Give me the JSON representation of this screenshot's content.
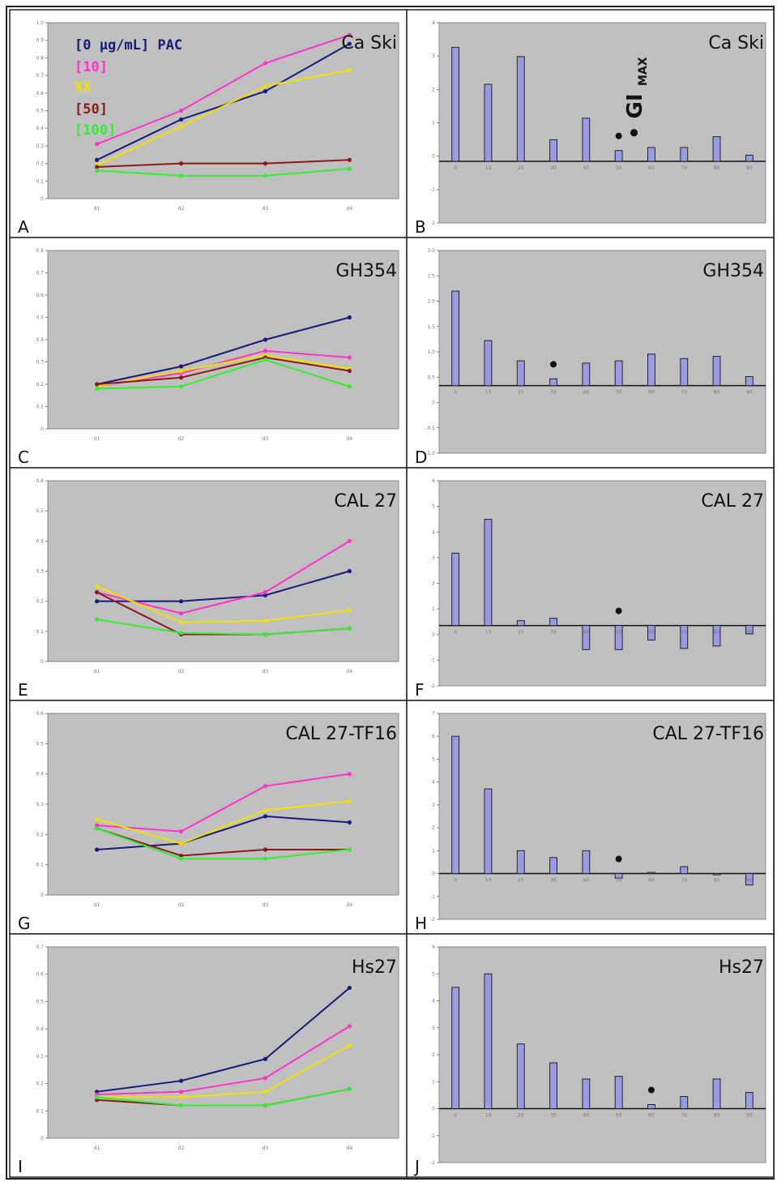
{
  "figure": {
    "background": "#c0c0c0"
  },
  "legend": {
    "entries": [
      {
        "label": "[0 μg/mL] PAC",
        "color": "#1a1a7a"
      },
      {
        "label": "[10]",
        "color": "#ff33cc"
      },
      {
        "label": "XX",
        "color": "#f0e000"
      },
      {
        "label": "[50]",
        "color": "#8b1a1a"
      },
      {
        "label": "[100]",
        "color": "#33ee33"
      }
    ]
  },
  "gimax_label": "• GI",
  "gimax_sub": "MAX",
  "chart_data": [
    {
      "type": "line",
      "panel": "A",
      "title": "Ca Ski",
      "categories": [
        "d1",
        "d2",
        "d3",
        "d4"
      ],
      "ylim": [
        0,
        1.0
      ],
      "yticks": [
        "0",
        "0.1",
        "0.2",
        "0.3",
        "0.4",
        "0.5",
        "0.6",
        "0.7",
        "0.8",
        "0.9",
        "1.0"
      ],
      "series": [
        {
          "name": "[0 μg/mL] PAC",
          "color": "#1a1a7a",
          "values": [
            0.22,
            0.45,
            0.61,
            0.88
          ]
        },
        {
          "name": "[10]",
          "color": "#ff33cc",
          "values": [
            0.31,
            0.5,
            0.77,
            0.93
          ]
        },
        {
          "name": "XX",
          "color": "#f0e000",
          "values": [
            0.19,
            0.41,
            0.64,
            0.73
          ]
        },
        {
          "name": "[50]",
          "color": "#8b1a1a",
          "values": [
            0.18,
            0.2,
            0.2,
            0.22
          ]
        },
        {
          "name": "[100]",
          "color": "#33ee33",
          "values": [
            0.16,
            0.13,
            0.13,
            0.17
          ]
        }
      ]
    },
    {
      "type": "bar",
      "panel": "B",
      "title": "Ca Ski",
      "categories": [
        "0",
        "10",
        "20",
        "30",
        "40",
        "50",
        "60",
        "70",
        "80",
        "90"
      ],
      "values": [
        3.7,
        2.5,
        3.4,
        0.7,
        1.4,
        0.35,
        0.45,
        0.45,
        0.8,
        0.2
      ],
      "ylim": [
        -2,
        4.5
      ],
      "yticks": [
        "-2",
        "-1",
        "0",
        "1",
        "2",
        "3",
        "4"
      ],
      "marker_index": 5
    },
    {
      "type": "line",
      "panel": "C",
      "title": "GH354",
      "categories": [
        "d1",
        "d2",
        "d3",
        "d4"
      ],
      "ylim": [
        0,
        0.8
      ],
      "yticks": [
        "0",
        "0.1",
        "0.2",
        "0.3",
        "0.4",
        "0.5",
        "0.6",
        "0.7",
        "0.8"
      ],
      "series": [
        {
          "name": "[0 μg/mL] PAC",
          "color": "#1a1a7a",
          "values": [
            0.2,
            0.28,
            0.4,
            0.5
          ]
        },
        {
          "name": "[10]",
          "color": "#ff33cc",
          "values": [
            0.19,
            0.25,
            0.35,
            0.32
          ]
        },
        {
          "name": "XX",
          "color": "#f0e000",
          "values": [
            0.19,
            0.26,
            0.33,
            0.27
          ]
        },
        {
          "name": "[50]",
          "color": "#8b1a1a",
          "values": [
            0.2,
            0.23,
            0.32,
            0.26
          ]
        },
        {
          "name": "[100]",
          "color": "#33ee33",
          "values": [
            0.18,
            0.19,
            0.31,
            0.19
          ]
        }
      ]
    },
    {
      "type": "bar",
      "panel": "D",
      "title": "GH354",
      "categories": [
        "0",
        "10",
        "20",
        "30",
        "40",
        "50",
        "60",
        "70",
        "80",
        "90"
      ],
      "values": [
        2.1,
        1.0,
        0.55,
        0.15,
        0.5,
        0.55,
        0.7,
        0.6,
        0.65,
        0.2
      ],
      "ylim": [
        -1.5,
        3.0
      ],
      "yticks": [
        "-1.0",
        "-0.5",
        "0",
        "0.5",
        "1.0",
        "1.5",
        "2.0",
        "2.5",
        "3.0"
      ],
      "marker_index": 3
    },
    {
      "type": "line",
      "panel": "E",
      "title": "CAL 27",
      "categories": [
        "d1",
        "d2",
        "d3",
        "d4"
      ],
      "ylim": [
        0,
        0.6
      ],
      "yticks": [
        "0",
        "0.1",
        "0.2",
        "0.3",
        "0.4",
        "0.5",
        "0.6"
      ],
      "series": [
        {
          "name": "[0 μg/mL] PAC",
          "color": "#1a1a7a",
          "values": [
            0.2,
            0.2,
            0.22,
            0.3
          ]
        },
        {
          "name": "[10]",
          "color": "#ff33cc",
          "values": [
            0.23,
            0.16,
            0.23,
            0.4
          ]
        },
        {
          "name": "XX",
          "color": "#f0e000",
          "values": [
            0.25,
            0.13,
            0.135,
            0.17
          ]
        },
        {
          "name": "[50]",
          "color": "#8b1a1a",
          "values": [
            0.23,
            0.09,
            0.09,
            0.11
          ]
        },
        {
          "name": "[100]",
          "color": "#33ee33",
          "values": [
            0.14,
            0.095,
            0.09,
            0.11
          ]
        }
      ]
    },
    {
      "type": "bar",
      "panel": "F",
      "title": "CAL 27",
      "categories": [
        "0",
        "10",
        "20",
        "30",
        "40",
        "50",
        "60",
        "70",
        "80",
        "90"
      ],
      "values": [
        3.0,
        4.4,
        0.2,
        0.3,
        -1.0,
        -1.0,
        -0.6,
        -0.95,
        -0.85,
        -0.35
      ],
      "ylim": [
        -2.5,
        6.0
      ],
      "yticks": [
        "-2",
        "-1",
        "0",
        "1",
        "2",
        "3",
        "4",
        "5",
        "6"
      ],
      "marker_index": 5
    },
    {
      "type": "line",
      "panel": "G",
      "title": "CAL 27-TF16",
      "categories": [
        "d1",
        "d2",
        "d3",
        "d4"
      ],
      "ylim": [
        0,
        0.6
      ],
      "yticks": [
        "0",
        "0.1",
        "0.2",
        "0.3",
        "0.4",
        "0.5",
        "0.6"
      ],
      "series": [
        {
          "name": "[0 μg/mL] PAC",
          "color": "#1a1a7a",
          "values": [
            0.15,
            0.17,
            0.26,
            0.24
          ]
        },
        {
          "name": "[10]",
          "color": "#ff33cc",
          "values": [
            0.23,
            0.21,
            0.36,
            0.4
          ]
        },
        {
          "name": "XX",
          "color": "#f0e000",
          "values": [
            0.25,
            0.17,
            0.28,
            0.31
          ]
        },
        {
          "name": "[50]",
          "color": "#8b1a1a",
          "values": [
            0.22,
            0.13,
            0.15,
            0.15
          ]
        },
        {
          "name": "[100]",
          "color": "#33ee33",
          "values": [
            0.22,
            0.12,
            0.12,
            0.15
          ]
        }
      ]
    },
    {
      "type": "bar",
      "panel": "H",
      "title": "CAL 27-TF16",
      "categories": [
        "0",
        "10",
        "20",
        "30",
        "40",
        "50",
        "60",
        "70",
        "80",
        "90"
      ],
      "values": [
        6.0,
        3.7,
        1.0,
        0.7,
        1.0,
        -0.2,
        0.05,
        0.3,
        0.0,
        -0.5
      ],
      "ylim": [
        -2,
        7
      ],
      "yticks": [
        "-2",
        "-1",
        "0",
        "1",
        "2",
        "3",
        "4",
        "5",
        "6",
        "7"
      ],
      "marker_index": 5
    },
    {
      "type": "line",
      "panel": "I",
      "title": "Hs27",
      "categories": [
        "d1",
        "d2",
        "d3",
        "d4"
      ],
      "ylim": [
        0,
        0.7
      ],
      "yticks": [
        "0",
        "0.1",
        "0.2",
        "0.3",
        "0.4",
        "0.5",
        "0.6",
        "0.7"
      ],
      "series": [
        {
          "name": "[0 μg/mL] PAC",
          "color": "#1a1a7a",
          "values": [
            0.17,
            0.21,
            0.29,
            0.55
          ]
        },
        {
          "name": "[10]",
          "color": "#ff33cc",
          "values": [
            0.16,
            0.17,
            0.22,
            0.41
          ]
        },
        {
          "name": "XX",
          "color": "#f0e000",
          "values": [
            0.15,
            0.15,
            0.17,
            0.34
          ]
        },
        {
          "name": "[50]",
          "color": "#8b1a1a",
          "values": [
            0.14,
            0.12,
            0.12,
            0.18
          ]
        },
        {
          "name": "[100]",
          "color": "#33ee33",
          "values": [
            0.15,
            0.12,
            0.12,
            0.18
          ]
        }
      ]
    },
    {
      "type": "bar",
      "panel": "J",
      "title": "Hs27",
      "categories": [
        "0",
        "10",
        "20",
        "30",
        "40",
        "50",
        "60",
        "70",
        "80",
        "90"
      ],
      "values": [
        4.5,
        5.0,
        2.4,
        1.7,
        1.1,
        1.2,
        0.15,
        0.45,
        1.1,
        0.6
      ],
      "ylim": [
        -2,
        6
      ],
      "yticks": [
        "-2",
        "-1",
        "0",
        "1",
        "2",
        "3",
        "4",
        "5",
        "6"
      ],
      "marker_index": 6
    }
  ]
}
